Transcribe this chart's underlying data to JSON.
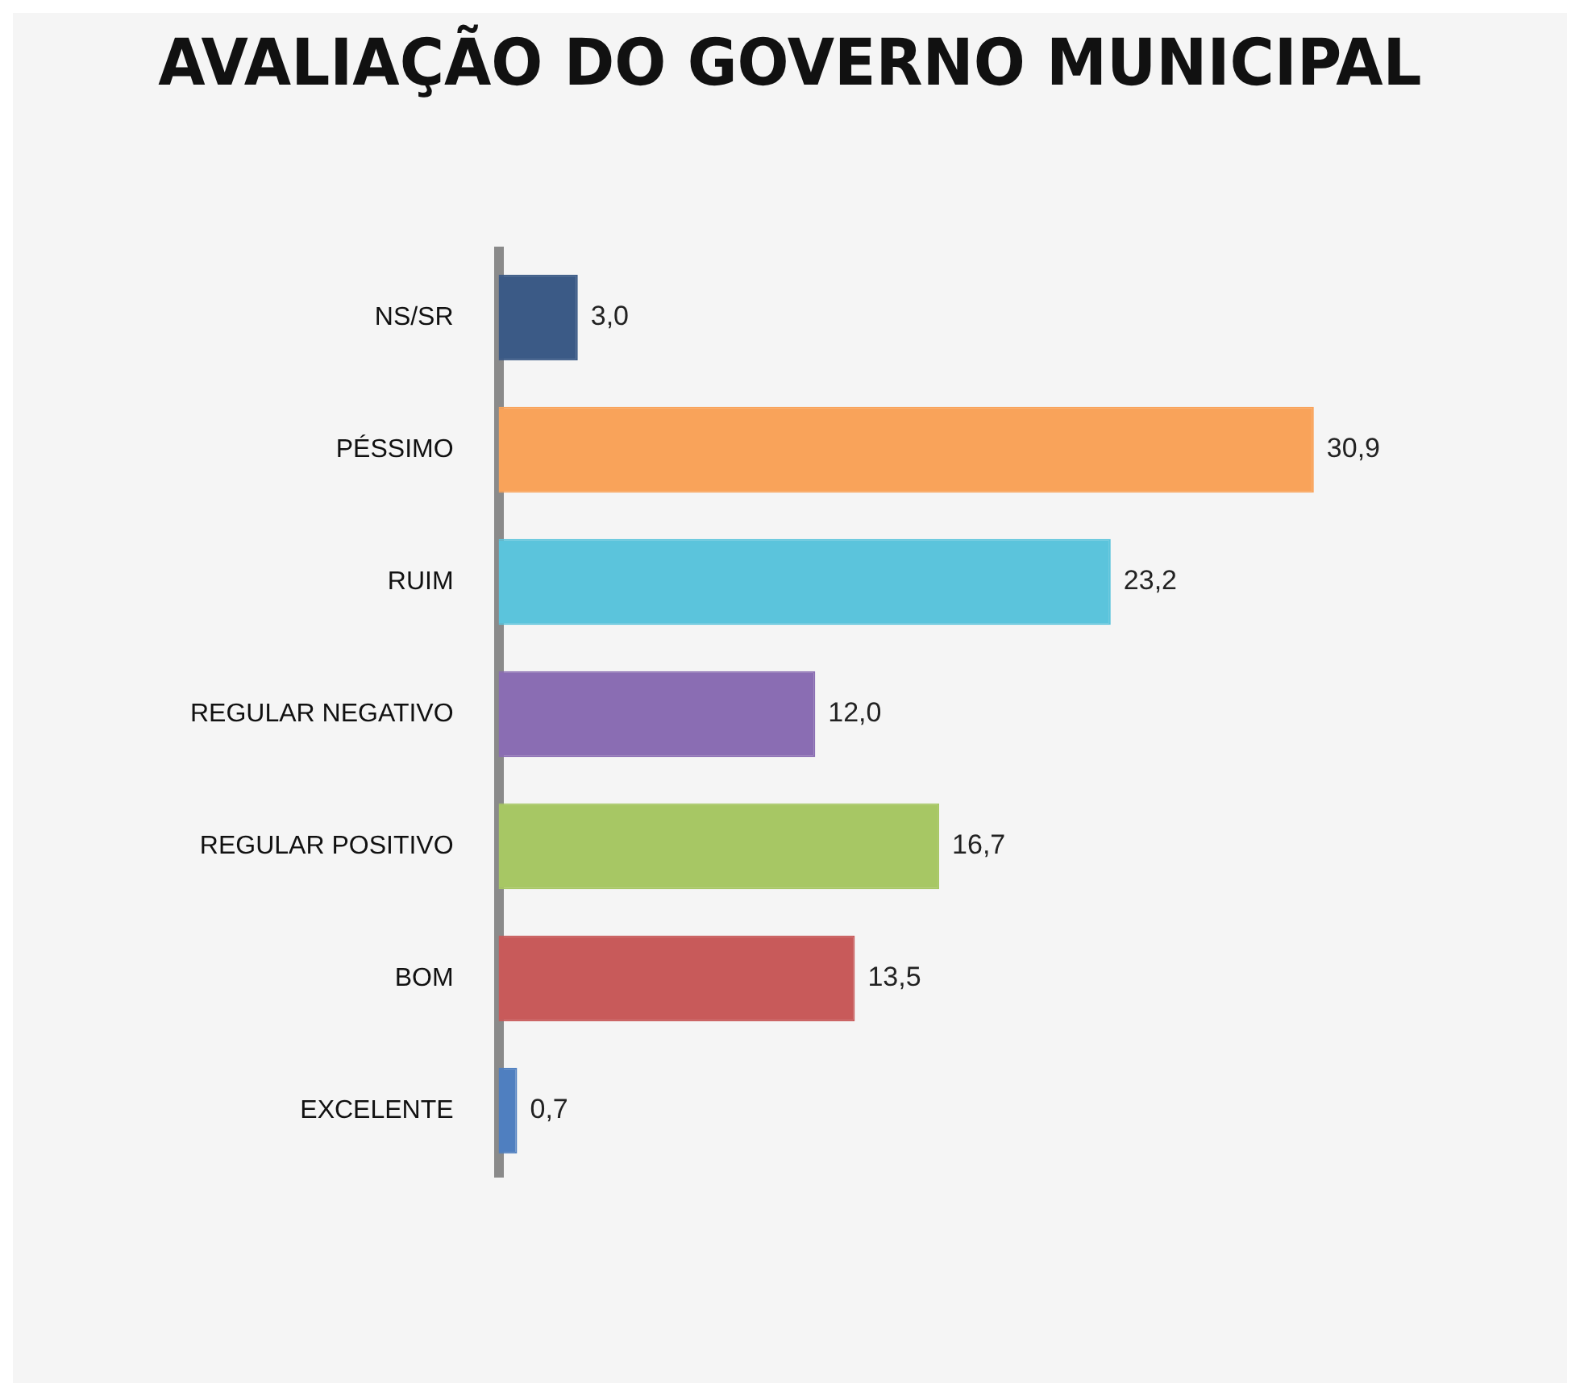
{
  "chart_data": {
    "type": "bar",
    "orientation": "horizontal",
    "title": "AVALIAÇÃO DO GOVERNO MUNICIPAL",
    "categories": [
      "NS/SR",
      "PÉSSIMO",
      "RUIM",
      "REGULAR NEGATIVO",
      "REGULAR POSITIVO",
      "BOM",
      "EXCELENTE"
    ],
    "values": [
      3.0,
      30.9,
      23.2,
      12.0,
      16.7,
      13.5,
      0.7
    ],
    "value_labels": [
      "3,0",
      "30,9",
      "23,2",
      "12,0",
      "16,7",
      "13,5",
      "0,7"
    ],
    "colors": [
      "#3b5a86",
      "#f9a35a",
      "#5bc4dc",
      "#8a6db3",
      "#a7c764",
      "#c85a5a",
      "#4f7fc0"
    ],
    "relative": false,
    "grid": false,
    "legend": false
  }
}
